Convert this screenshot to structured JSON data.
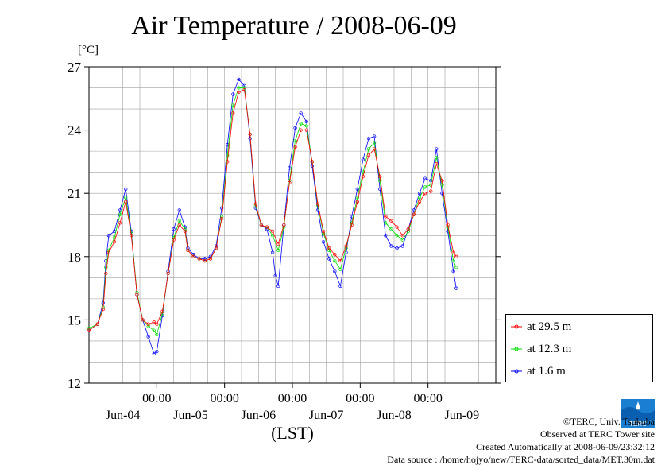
{
  "title": "Air Temperature / 2008-06-09",
  "unit_label": "[°C]",
  "xlabel": "(LST)",
  "legend": [
    "at 29.5 m",
    "at 12.3 m",
    "at 1.6 m"
  ],
  "credits": {
    "copyright": "©TERC, Univ. Tsukuba",
    "observed": "Observed at TERC Tower site",
    "created": "Created Automatically at 2008-06-09/23:32:12",
    "source": "Data source : /home/hojyo/new/TERC-data/sorted_data/MET.30m.dat"
  },
  "logo_text": "TERC",
  "colors": {
    "series": [
      "#ff0000",
      "#00dd00",
      "#0000ff"
    ],
    "grid": "#a0a0a0"
  },
  "chart_data": {
    "type": "line",
    "ylim": [
      12,
      27
    ],
    "yticks": [
      12,
      15,
      18,
      21,
      24,
      27
    ],
    "xlim": [
      0,
      144
    ],
    "time_ticks": [
      {
        "x": 24,
        "label": "00:00"
      },
      {
        "x": 48,
        "label": "00:00"
      },
      {
        "x": 72,
        "label": "00:00"
      },
      {
        "x": 96,
        "label": "00:00"
      },
      {
        "x": 120,
        "label": "00:00"
      }
    ],
    "day_labels": [
      {
        "x": 12,
        "label": "Jun-04"
      },
      {
        "x": 36,
        "label": "Jun-05"
      },
      {
        "x": 60,
        "label": "Jun-06"
      },
      {
        "x": 84,
        "label": "Jun-07"
      },
      {
        "x": 108,
        "label": "Jun-08"
      },
      {
        "x": 132,
        "label": "Jun-09"
      }
    ],
    "series": [
      {
        "name": "at 29.5 m",
        "points": [
          [
            0,
            14.5
          ],
          [
            3,
            14.8
          ],
          [
            5,
            15.5
          ],
          [
            6,
            17.2
          ],
          [
            7,
            18.2
          ],
          [
            9,
            18.7
          ],
          [
            11,
            19.6
          ],
          [
            13,
            20.6
          ],
          [
            15,
            19.0
          ],
          [
            17,
            16.2
          ],
          [
            19,
            15.0
          ],
          [
            21,
            14.8
          ],
          [
            23,
            14.9
          ],
          [
            24,
            14.8
          ],
          [
            26,
            15.4
          ],
          [
            28,
            17.2
          ],
          [
            30,
            18.8
          ],
          [
            32,
            19.5
          ],
          [
            34,
            19.2
          ],
          [
            35,
            18.3
          ],
          [
            37,
            18.0
          ],
          [
            39,
            17.9
          ],
          [
            41,
            17.8
          ],
          [
            43,
            17.9
          ],
          [
            45,
            18.4
          ],
          [
            47,
            19.8
          ],
          [
            49,
            22.5
          ],
          [
            51,
            24.8
          ],
          [
            53,
            25.8
          ],
          [
            55,
            25.9
          ],
          [
            57,
            23.8
          ],
          [
            59,
            20.5
          ],
          [
            61,
            19.5
          ],
          [
            63,
            19.4
          ],
          [
            65,
            19.2
          ],
          [
            67,
            18.6
          ],
          [
            69,
            19.5
          ],
          [
            71,
            21.5
          ],
          [
            73,
            23.2
          ],
          [
            75,
            24.0
          ],
          [
            77,
            24.0
          ],
          [
            79,
            22.5
          ],
          [
            81,
            20.5
          ],
          [
            83,
            19.2
          ],
          [
            85,
            18.4
          ],
          [
            87,
            18.1
          ],
          [
            89,
            17.8
          ],
          [
            91,
            18.5
          ],
          [
            93,
            19.5
          ],
          [
            95,
            20.6
          ],
          [
            97,
            21.8
          ],
          [
            99,
            22.8
          ],
          [
            101,
            23.1
          ],
          [
            103,
            21.8
          ],
          [
            105,
            19.9
          ],
          [
            107,
            19.7
          ],
          [
            109,
            19.4
          ],
          [
            111,
            19.0
          ],
          [
            113,
            19.3
          ],
          [
            115,
            20.0
          ],
          [
            117,
            20.6
          ],
          [
            119,
            21.0
          ],
          [
            121,
            21.1
          ],
          [
            123,
            22.4
          ],
          [
            125,
            21.6
          ],
          [
            127,
            19.5
          ],
          [
            129,
            18.2
          ],
          [
            130,
            18.0
          ]
        ]
      },
      {
        "name": "at 12.3 m",
        "points": [
          [
            0,
            14.6
          ],
          [
            3,
            14.8
          ],
          [
            5,
            15.6
          ],
          [
            6,
            17.5
          ],
          [
            7,
            18.3
          ],
          [
            9,
            18.9
          ],
          [
            11,
            20.0
          ],
          [
            13,
            20.8
          ],
          [
            15,
            19.1
          ],
          [
            17,
            16.3
          ],
          [
            19,
            15.0
          ],
          [
            21,
            14.7
          ],
          [
            23,
            14.5
          ],
          [
            24,
            14.3
          ],
          [
            26,
            15.3
          ],
          [
            28,
            17.2
          ],
          [
            30,
            18.9
          ],
          [
            32,
            19.7
          ],
          [
            34,
            19.3
          ],
          [
            35,
            18.3
          ],
          [
            37,
            18.0
          ],
          [
            39,
            17.9
          ],
          [
            41,
            17.8
          ],
          [
            43,
            17.9
          ],
          [
            45,
            18.4
          ],
          [
            47,
            19.9
          ],
          [
            49,
            22.8
          ],
          [
            51,
            25.2
          ],
          [
            53,
            26.0
          ],
          [
            55,
            26.0
          ],
          [
            57,
            23.8
          ],
          [
            59,
            20.4
          ],
          [
            61,
            19.5
          ],
          [
            63,
            19.4
          ],
          [
            65,
            19.0
          ],
          [
            67,
            18.3
          ],
          [
            69,
            19.4
          ],
          [
            71,
            21.6
          ],
          [
            73,
            23.5
          ],
          [
            75,
            24.3
          ],
          [
            77,
            24.2
          ],
          [
            79,
            22.5
          ],
          [
            81,
            20.4
          ],
          [
            83,
            19.1
          ],
          [
            85,
            18.3
          ],
          [
            87,
            17.8
          ],
          [
            89,
            17.4
          ],
          [
            91,
            18.4
          ],
          [
            93,
            19.6
          ],
          [
            95,
            20.8
          ],
          [
            97,
            22.0
          ],
          [
            99,
            23.1
          ],
          [
            101,
            23.4
          ],
          [
            103,
            21.6
          ],
          [
            105,
            19.6
          ],
          [
            107,
            19.3
          ],
          [
            109,
            19.0
          ],
          [
            111,
            18.8
          ],
          [
            113,
            19.2
          ],
          [
            115,
            20.0
          ],
          [
            117,
            20.8
          ],
          [
            119,
            21.3
          ],
          [
            121,
            21.4
          ],
          [
            123,
            22.7
          ],
          [
            125,
            21.4
          ],
          [
            127,
            19.4
          ],
          [
            129,
            17.8
          ],
          [
            130,
            17.5
          ]
        ]
      },
      {
        "name": "at 1.6 m",
        "points": [
          [
            0,
            14.5
          ],
          [
            3,
            14.8
          ],
          [
            5,
            15.8
          ],
          [
            6,
            17.8
          ],
          [
            7,
            19.0
          ],
          [
            9,
            19.2
          ],
          [
            11,
            20.2
          ],
          [
            13,
            21.2
          ],
          [
            15,
            19.2
          ],
          [
            17,
            16.2
          ],
          [
            19,
            15.0
          ],
          [
            21,
            14.2
          ],
          [
            23,
            13.4
          ],
          [
            24,
            13.5
          ],
          [
            26,
            15.2
          ],
          [
            28,
            17.3
          ],
          [
            30,
            19.3
          ],
          [
            32,
            20.2
          ],
          [
            34,
            19.4
          ],
          [
            35,
            18.4
          ],
          [
            37,
            18.1
          ],
          [
            39,
            17.9
          ],
          [
            41,
            17.9
          ],
          [
            43,
            18.0
          ],
          [
            45,
            18.5
          ],
          [
            47,
            20.3
          ],
          [
            49,
            23.3
          ],
          [
            51,
            25.7
          ],
          [
            53,
            26.4
          ],
          [
            55,
            26.1
          ],
          [
            57,
            23.6
          ],
          [
            59,
            20.3
          ],
          [
            61,
            19.5
          ],
          [
            63,
            19.3
          ],
          [
            65,
            18.2
          ],
          [
            66,
            17.1
          ],
          [
            67,
            16.6
          ],
          [
            69,
            19.5
          ],
          [
            71,
            22.2
          ],
          [
            73,
            24.1
          ],
          [
            75,
            24.8
          ],
          [
            77,
            24.4
          ],
          [
            79,
            22.3
          ],
          [
            81,
            20.2
          ],
          [
            83,
            18.7
          ],
          [
            85,
            17.9
          ],
          [
            87,
            17.3
          ],
          [
            89,
            16.6
          ],
          [
            91,
            18.2
          ],
          [
            93,
            19.9
          ],
          [
            95,
            21.2
          ],
          [
            97,
            22.6
          ],
          [
            99,
            23.6
          ],
          [
            101,
            23.7
          ],
          [
            103,
            21.2
          ],
          [
            105,
            19.0
          ],
          [
            107,
            18.5
          ],
          [
            109,
            18.4
          ],
          [
            111,
            18.5
          ],
          [
            113,
            19.3
          ],
          [
            115,
            20.2
          ],
          [
            117,
            21.0
          ],
          [
            119,
            21.7
          ],
          [
            121,
            21.6
          ],
          [
            123,
            23.1
          ],
          [
            125,
            21.0
          ],
          [
            127,
            19.2
          ],
          [
            129,
            17.3
          ],
          [
            130,
            16.5
          ]
        ]
      }
    ]
  }
}
